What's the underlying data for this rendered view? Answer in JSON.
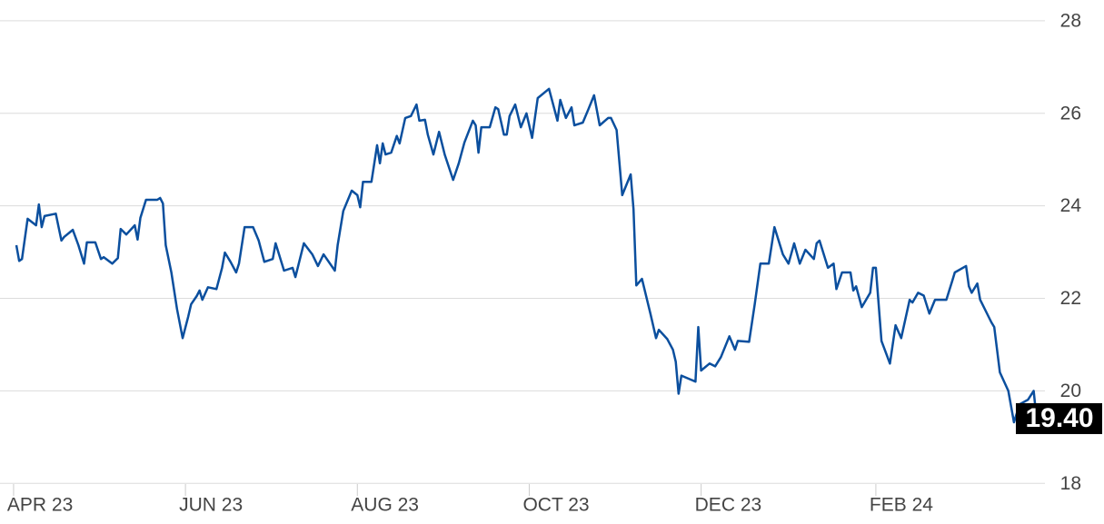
{
  "chart_data": {
    "type": "line",
    "x": [
      1,
      2,
      3,
      5,
      8,
      9,
      10,
      11,
      15,
      16,
      17,
      18,
      21,
      23,
      25,
      26,
      29,
      31,
      32,
      35,
      37,
      38,
      40,
      43,
      44,
      45,
      47,
      51,
      52,
      53,
      54,
      56,
      58,
      60,
      62,
      63,
      65,
      66,
      67,
      69,
      72,
      74,
      75,
      77,
      79,
      80,
      82,
      85,
      87,
      89,
      92,
      93,
      96,
      99,
      100,
      103,
      106,
      108,
      110,
      114,
      115,
      117,
      120,
      122,
      123,
      124,
      127,
      129,
      130,
      131,
      132,
      134,
      136,
      137,
      139,
      141,
      143,
      144,
      146,
      147,
      149,
      151,
      153,
      156,
      158,
      160,
      163,
      164,
      165,
      166,
      169,
      171,
      172,
      174,
      175,
      176,
      178,
      180,
      182,
      184,
      186,
      190,
      193,
      194,
      196,
      198,
      199,
      202,
      204,
      206,
      208,
      211,
      212,
      214,
      216,
      219,
      220,
      221,
      223,
      226,
      228,
      229,
      232,
      234,
      235,
      236,
      237,
      242,
      243,
      244,
      247,
      249,
      251,
      254,
      256,
      257,
      261,
      263,
      265,
      268,
      270,
      273,
      275,
      277,
      279,
      281,
      284,
      285,
      286,
      289,
      291,
      292,
      294,
      297,
      298,
      299,
      301,
      304,
      305,
      306,
      308,
      311,
      313,
      315,
      318,
      319,
      321,
      323,
      325,
      327,
      331,
      333,
      334,
      338,
      339,
      340,
      342,
      343,
      347,
      348,
      350,
      353,
      355,
      357,
      360,
      362,
      363,
      364
    ],
    "series": [
      {
        "color": "#0b4f9e",
        "values": [
          23.15,
          22.81,
          22.85,
          23.72,
          23.58,
          24.03,
          23.54,
          23.78,
          23.83,
          23.54,
          23.25,
          23.33,
          23.48,
          23.15,
          22.75,
          23.21,
          23.21,
          22.85,
          22.89,
          22.75,
          22.87,
          23.5,
          23.38,
          23.58,
          23.27,
          23.74,
          24.13,
          24.13,
          24.17,
          24.05,
          23.15,
          22.56,
          21.77,
          21.14,
          21.61,
          21.87,
          22.05,
          22.17,
          21.97,
          22.24,
          22.2,
          22.66,
          22.99,
          22.79,
          22.56,
          22.75,
          23.54,
          23.54,
          23.25,
          22.79,
          22.85,
          23.19,
          22.6,
          22.66,
          22.46,
          23.19,
          22.95,
          22.7,
          22.95,
          22.6,
          23.15,
          23.89,
          24.33,
          24.23,
          23.97,
          24.52,
          24.52,
          25.31,
          24.92,
          25.35,
          25.11,
          25.15,
          25.51,
          25.35,
          25.9,
          25.94,
          26.19,
          25.84,
          25.86,
          25.54,
          25.11,
          25.6,
          25.11,
          24.56,
          24.92,
          25.37,
          25.84,
          25.74,
          25.15,
          25.7,
          25.7,
          26.13,
          26.09,
          25.54,
          25.54,
          25.94,
          26.19,
          25.7,
          26.0,
          25.47,
          26.33,
          26.53,
          25.84,
          26.29,
          25.9,
          26.13,
          25.74,
          25.8,
          26.09,
          26.39,
          25.74,
          25.9,
          25.9,
          25.64,
          24.23,
          24.68,
          23.93,
          22.28,
          22.42,
          21.67,
          21.14,
          21.32,
          21.12,
          20.89,
          20.63,
          19.94,
          20.33,
          20.2,
          21.38,
          20.44,
          20.59,
          20.53,
          20.73,
          21.18,
          20.89,
          21.08,
          21.06,
          21.87,
          22.75,
          22.75,
          23.54,
          22.95,
          22.75,
          23.19,
          22.75,
          23.05,
          22.85,
          23.19,
          23.25,
          22.66,
          22.75,
          22.2,
          22.56,
          22.56,
          22.17,
          22.26,
          21.81,
          22.12,
          22.66,
          22.66,
          21.08,
          20.59,
          21.42,
          21.14,
          21.97,
          21.91,
          22.12,
          22.06,
          21.67,
          21.97,
          21.97,
          22.36,
          22.56,
          22.7,
          22.26,
          22.12,
          22.32,
          21.97,
          21.48,
          21.38,
          20.4,
          20.0,
          19.32,
          19.71,
          19.81,
          20.0,
          19.41,
          19.4
        ]
      }
    ],
    "last_label": "19.40",
    "xlim": [
      -3.2,
      366
    ],
    "xticks": [
      {
        "value": 0,
        "label": "APR 23"
      },
      {
        "value": 61,
        "label": "JUN 23"
      },
      {
        "value": 122,
        "label": "AUG 23"
      },
      {
        "value": 183,
        "label": "OCT 23"
      },
      {
        "value": 244,
        "label": "DEC 23"
      },
      {
        "value": 306,
        "label": "FEB 24"
      }
    ],
    "ylim": [
      17.75,
      28.45
    ],
    "yticks": [
      18,
      20,
      22,
      24,
      26,
      28
    ],
    "grid": true
  }
}
